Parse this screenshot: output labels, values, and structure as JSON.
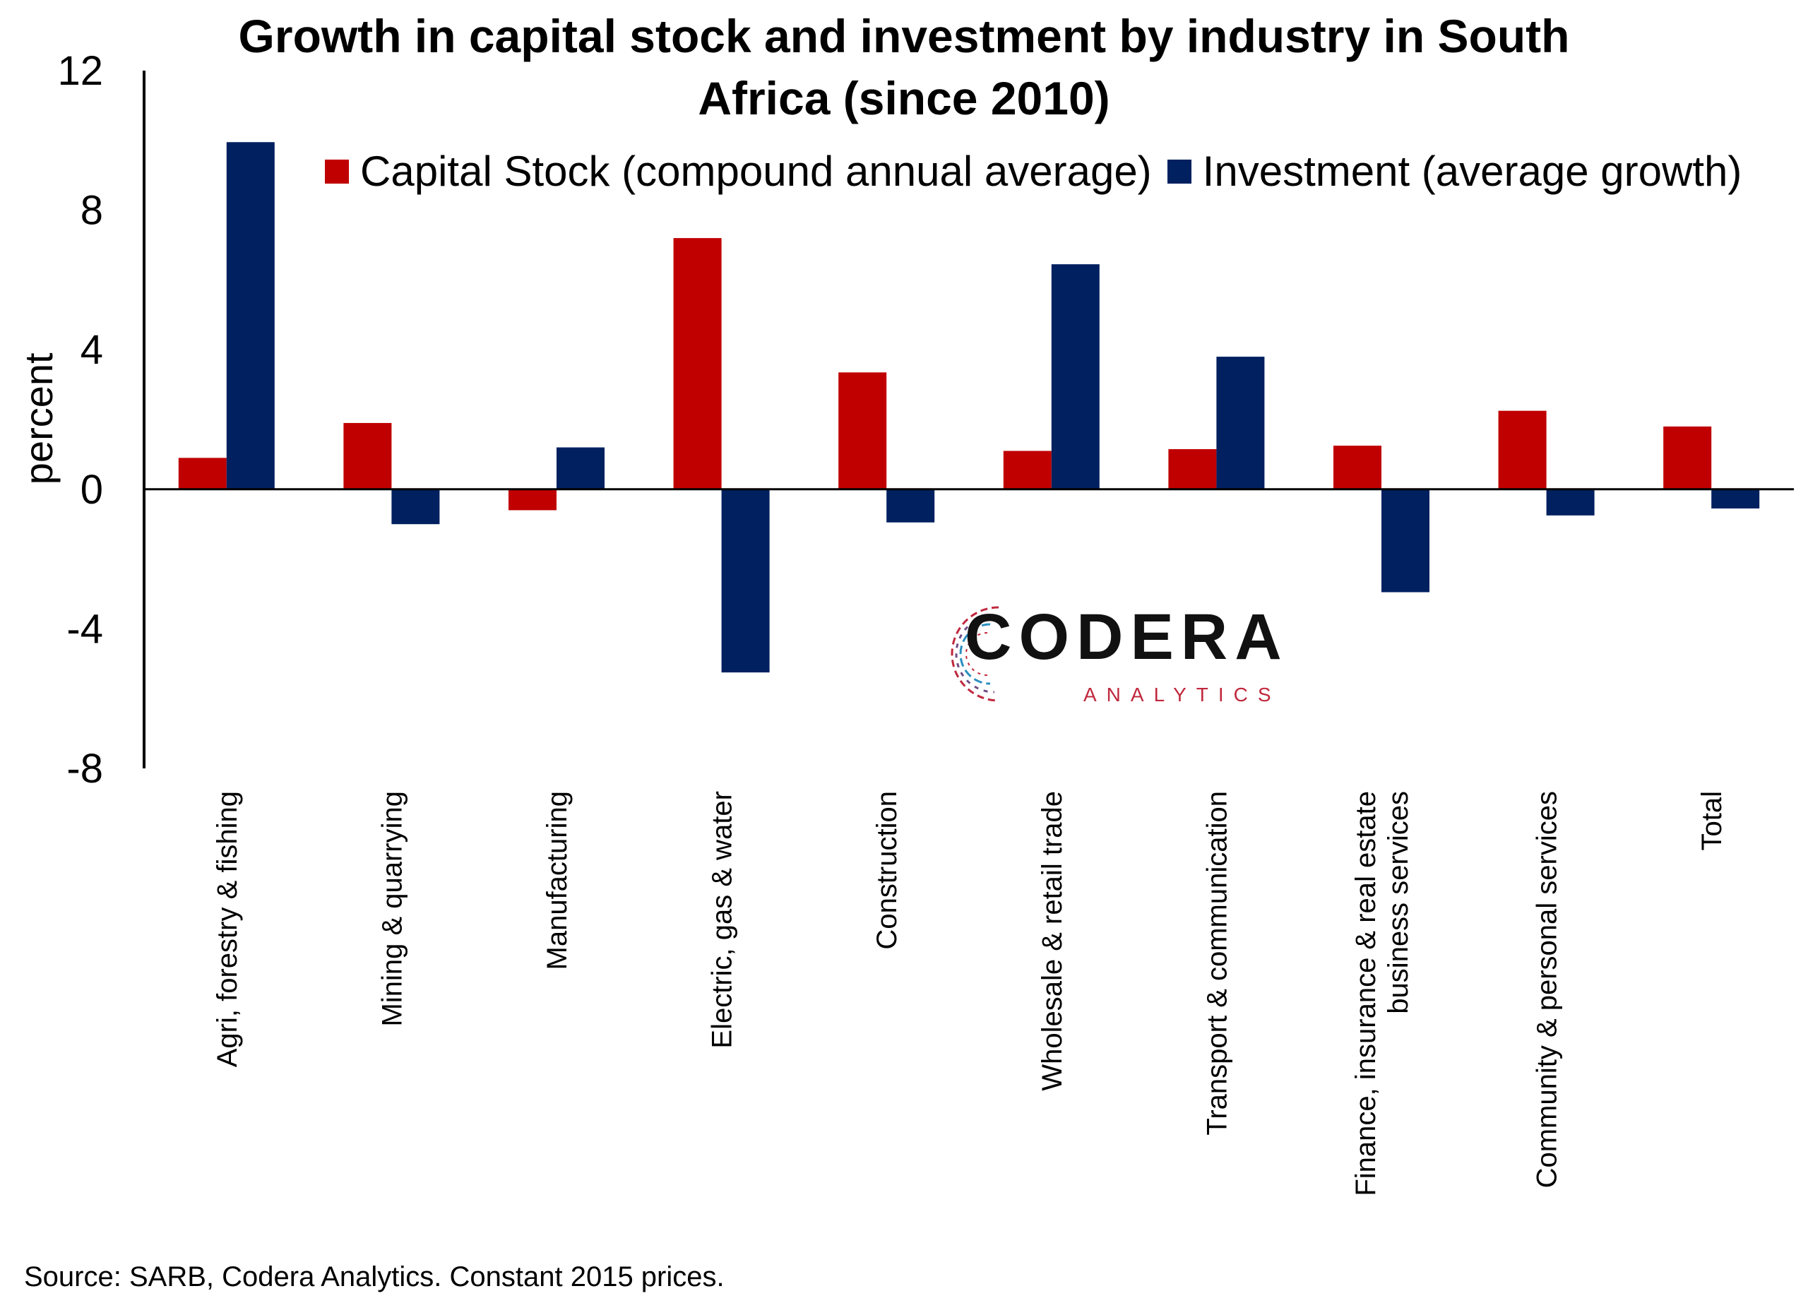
{
  "title_lines": [
    "Growth in capital stock and investment by industry in South",
    "Africa (since 2010)"
  ],
  "source": "Source: SARB, Codera Analytics. Constant 2015 prices.",
  "logo": {
    "name": "CODERA",
    "sub": "ANALYTICS"
  },
  "colors": {
    "capital": "#c00000",
    "investment": "#002060",
    "axis": "#000000"
  },
  "chart_data": {
    "type": "bar",
    "title": "Growth in capital stock and investment by industry in South Africa (since 2010)",
    "ylabel": "percent",
    "ylim": [
      -8,
      12
    ],
    "yticks": [
      12,
      8,
      4,
      0,
      -4,
      -8
    ],
    "ytick_labels": [
      "12",
      "8",
      "4",
      "0",
      "-4",
      "-8"
    ],
    "legend_position": "top",
    "categories": [
      [
        "Agri, forestry & fishing"
      ],
      [
        "Mining & quarrying"
      ],
      [
        "Manufacturing"
      ],
      [
        "Electric, gas & water"
      ],
      [
        "Construction"
      ],
      [
        "Wholesale & retail trade"
      ],
      [
        "Transport & communication"
      ],
      [
        "Finance, insurance & real estate",
        "business services"
      ],
      [
        "Community & personal services"
      ],
      [
        "Total"
      ]
    ],
    "series": [
      {
        "name": "Capital Stock (compound annual average)",
        "color": "#c00000",
        "values": [
          0.9,
          1.9,
          -0.6,
          7.2,
          3.35,
          1.1,
          1.15,
          1.25,
          2.25,
          1.8
        ]
      },
      {
        "name": "Investment (average growth)",
        "color": "#002060",
        "values": [
          9.95,
          -1.0,
          1.2,
          -5.25,
          -0.95,
          6.45,
          3.8,
          -2.95,
          -0.75,
          -0.55
        ]
      }
    ]
  }
}
